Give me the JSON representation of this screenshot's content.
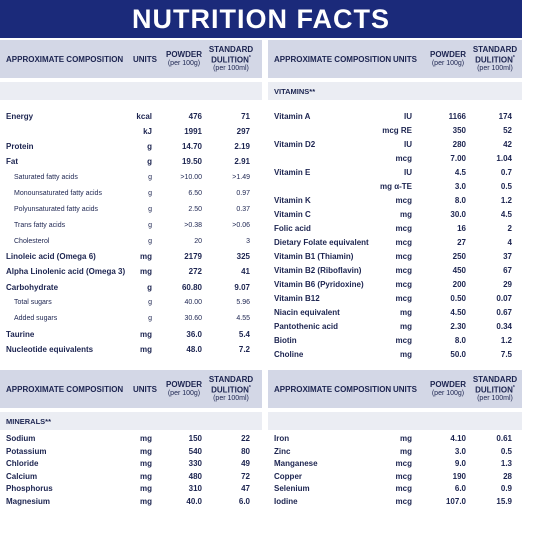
{
  "title": "NUTRITION FACTS",
  "header": {
    "composition": "APPROXIMATE COMPOSITION",
    "units": "UNITS",
    "powder": "POWDER",
    "powder_sub": "(per 100g)",
    "standard": "STANDARD",
    "dilution": "DULITION",
    "dilution_mark": "*",
    "standard_sub": "(per 100ml)"
  },
  "vitamins_label": "VITAMINS**",
  "minerals_label": "MINERALS**",
  "top_left_rows": [
    {
      "name": "Energy",
      "unit": "kcal",
      "powder": "476",
      "std": "71",
      "bold": true
    },
    {
      "name": "",
      "unit": "kJ",
      "powder": "1991",
      "std": "297",
      "bold": true
    },
    {
      "name": "Protein",
      "unit": "g",
      "powder": "14.70",
      "std": "2.19",
      "bold": true
    },
    {
      "name": "Fat",
      "unit": "g",
      "powder": "19.50",
      "std": "2.91",
      "bold": true
    },
    {
      "name": "Saturated fatty acids",
      "unit": "g",
      "powder": ">10.00",
      "std": ">1.49",
      "bold": false
    },
    {
      "name": "Monounsaturated fatty acids",
      "unit": "g",
      "powder": "6.50",
      "std": "0.97",
      "bold": false
    },
    {
      "name": "Polyunsaturated fatty acids",
      "unit": "g",
      "powder": "2.50",
      "std": "0.37",
      "bold": false
    },
    {
      "name": "Trans fatty acids",
      "unit": "g",
      "powder": ">0.38",
      "std": ">0.06",
      "bold": false
    },
    {
      "name": "Cholesterol",
      "unit": "g",
      "powder": "20",
      "std": "3",
      "bold": false
    },
    {
      "name": "Linoleic acid (Omega 6)",
      "unit": "mg",
      "powder": "2179",
      "std": "325",
      "bold": true
    },
    {
      "name": "Alpha Linolenic acid (Omega 3)",
      "unit": "mg",
      "powder": "272",
      "std": "41",
      "bold": true
    },
    {
      "name": "Carbohydrate",
      "unit": "g",
      "powder": "60.80",
      "std": "9.07",
      "bold": true
    },
    {
      "name": "Total sugars",
      "unit": "g",
      "powder": "40.00",
      "std": "5.96",
      "bold": false
    },
    {
      "name": "Added sugars",
      "unit": "g",
      "powder": "30.60",
      "std": "4.55",
      "bold": false
    },
    {
      "name": "Taurine",
      "unit": "mg",
      "powder": "36.0",
      "std": "5.4",
      "bold": true
    },
    {
      "name": "Nucleotide equivalents",
      "unit": "mg",
      "powder": "48.0",
      "std": "7.2",
      "bold": true
    }
  ],
  "vitamin_rows": [
    {
      "name": "Vitamin A",
      "unit": "IU",
      "powder": "1166",
      "std": "174"
    },
    {
      "name": "",
      "unit": "mcg RE",
      "powder": "350",
      "std": "52"
    },
    {
      "name": "Vitamin D2",
      "unit": "IU",
      "powder": "280",
      "std": "42"
    },
    {
      "name": "",
      "unit": "mcg",
      "powder": "7.00",
      "std": "1.04"
    },
    {
      "name": "Vitamin E",
      "unit": "IU",
      "powder": "4.5",
      "std": "0.7"
    },
    {
      "name": "",
      "unit": "mg α-TE",
      "powder": "3.0",
      "std": "0.5"
    },
    {
      "name": "Vitamin K",
      "unit": "mcg",
      "powder": "8.0",
      "std": "1.2"
    },
    {
      "name": "Vitamin C",
      "unit": "mg",
      "powder": "30.0",
      "std": "4.5"
    },
    {
      "name": "Folic acid",
      "unit": "mcg",
      "powder": "16",
      "std": "2"
    },
    {
      "name": "Dietary Folate equivalent",
      "unit": "mcg",
      "powder": "27",
      "std": "4"
    },
    {
      "name": "Vitamin B1 (Thiamin)",
      "unit": "mcg",
      "powder": "250",
      "std": "37"
    },
    {
      "name": "Vitamin B2 (Riboflavin)",
      "unit": "mcg",
      "powder": "450",
      "std": "67"
    },
    {
      "name": "Vitamin B6 (Pyridoxine)",
      "unit": "mcg",
      "powder": "200",
      "std": "29"
    },
    {
      "name": "Vitamin B12",
      "unit": "mcg",
      "powder": "0.50",
      "std": "0.07"
    },
    {
      "name": "Niacin equivalent",
      "unit": "mg",
      "powder": "4.50",
      "std": "0.67"
    },
    {
      "name": "Pantothenic acid",
      "unit": "mg",
      "powder": "2.30",
      "std": "0.34"
    },
    {
      "name": "Biotin",
      "unit": "mcg",
      "powder": "8.0",
      "std": "1.2"
    },
    {
      "name": "Choline",
      "unit": "mg",
      "powder": "50.0",
      "std": "7.5"
    }
  ],
  "mineral_left_rows": [
    {
      "name": "Sodium",
      "unit": "mg",
      "powder": "150",
      "std": "22"
    },
    {
      "name": "Potassium",
      "unit": "mg",
      "powder": "540",
      "std": "80"
    },
    {
      "name": "Chloride",
      "unit": "mg",
      "powder": "330",
      "std": "49"
    },
    {
      "name": "Calcium",
      "unit": "mg",
      "powder": "480",
      "std": "72"
    },
    {
      "name": "Phosphorus",
      "unit": "mg",
      "powder": "310",
      "std": "47"
    },
    {
      "name": "Magnesium",
      "unit": "mg",
      "powder": "40.0",
      "std": "6.0"
    }
  ],
  "mineral_right_rows": [
    {
      "name": "Iron",
      "unit": "mg",
      "powder": "4.10",
      "std": "0.61"
    },
    {
      "name": "Zinc",
      "unit": "mg",
      "powder": "3.0",
      "std": "0.5"
    },
    {
      "name": "Manganese",
      "unit": "mcg",
      "powder": "9.0",
      "std": "1.3"
    },
    {
      "name": "Copper",
      "unit": "mcg",
      "powder": "190",
      "std": "28"
    },
    {
      "name": "Selenium",
      "unit": "mcg",
      "powder": "6.0",
      "std": "0.9"
    },
    {
      "name": "Iodine",
      "unit": "mcg",
      "powder": "107.0",
      "std": "15.9"
    }
  ]
}
